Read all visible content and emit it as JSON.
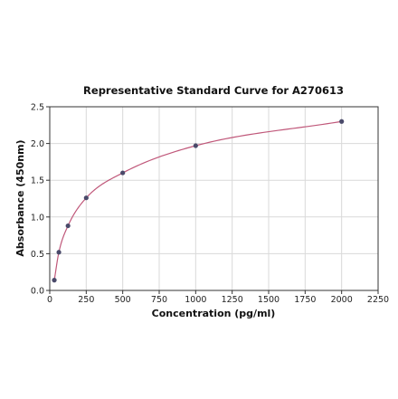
{
  "chart_data": {
    "type": "scatter",
    "title": "Representative Standard Curve for A270613",
    "xlabel": "Concentration (pg/ml)",
    "ylabel": "Absorbance (450nm)",
    "xlim": [
      0,
      2250
    ],
    "ylim": [
      0,
      2.5
    ],
    "xticks": [
      0,
      250,
      500,
      750,
      1000,
      1250,
      1500,
      1750,
      2000,
      2250
    ],
    "yticks": [
      0.0,
      0.5,
      1.0,
      1.5,
      2.0,
      2.5
    ],
    "xtick_labels": [
      "0",
      "250",
      "500",
      "750",
      "1000",
      "1250",
      "1500",
      "1750",
      "2000",
      "2250"
    ],
    "ytick_labels": [
      "0.0",
      "0.5",
      "1.0",
      "1.5",
      "2.0",
      "2.5"
    ],
    "grid": true,
    "series": [
      {
        "points": [
          {
            "x": 31.25,
            "y": 0.14
          },
          {
            "x": 62.5,
            "y": 0.52
          },
          {
            "x": 125,
            "y": 0.88
          },
          {
            "x": 250,
            "y": 1.26
          },
          {
            "x": 500,
            "y": 1.6
          },
          {
            "x": 1000,
            "y": 1.97
          },
          {
            "x": 2000,
            "y": 2.3
          }
        ],
        "marker_color": "#4a4a6a",
        "fit": "curve",
        "fit_color": "#c0587a"
      }
    ]
  }
}
